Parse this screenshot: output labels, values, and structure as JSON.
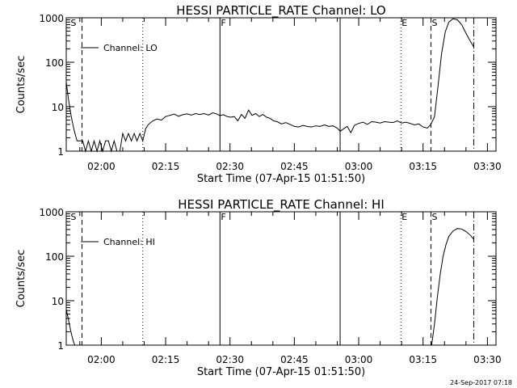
{
  "footer": {
    "timestamp": "24-Sep-2017 07:18"
  },
  "chart_data": [
    {
      "type": "line",
      "title": "HESSI PARTICLE_RATE Channel: LO",
      "xlabel": "Start Time (07-Apr-15 01:51:50)",
      "ylabel": "Counts/sec",
      "legend": {
        "label": "Channel: LO",
        "position": "top-left"
      },
      "x_unit": "UT",
      "xlim": [
        "01:51:50",
        "03:32:00"
      ],
      "ylim": [
        1,
        1000
      ],
      "y_scale": "log",
      "yticks": [
        1,
        10,
        100,
        1000
      ],
      "ytick_labels": [
        "1",
        "10",
        "100",
        "1000"
      ],
      "xticks": [
        "02:00",
        "02:15",
        "02:30",
        "02:45",
        "03:00",
        "03:15",
        "03:30"
      ],
      "markers": [
        {
          "label": "S",
          "time": "01:52:40",
          "style": "none"
        },
        {
          "label": "",
          "time": "01:55:30",
          "style": "dashed"
        },
        {
          "label": "",
          "time": "02:09:40",
          "style": "dotted"
        },
        {
          "label": "F",
          "time": "02:27:40",
          "style": "solid"
        },
        {
          "label": "",
          "time": "02:55:40",
          "style": "solid"
        },
        {
          "label": "E",
          "time": "03:09:50",
          "style": "dotted"
        },
        {
          "label": "S",
          "time": "03:16:50",
          "style": "dashed"
        },
        {
          "label": "",
          "time": "03:26:50",
          "style": "dashdot"
        }
      ],
      "series": [
        {
          "name": "Channel: LO",
          "x": [
            "01:51:50",
            "01:52:20",
            "01:53:00",
            "01:53:40",
            "01:54:20",
            "01:55:00",
            "01:55:40",
            "01:56:20",
            "01:57:00",
            "01:57:40",
            "01:58:20",
            "01:59:00",
            "01:59:40",
            "02:00:20",
            "02:01:00",
            "02:01:40",
            "02:02:20",
            "02:03:00",
            "02:03:40",
            "02:04:20",
            "02:05:00",
            "02:05:40",
            "02:06:20",
            "02:07:00",
            "02:07:40",
            "02:08:20",
            "02:09:00",
            "02:09:40",
            "02:10:20",
            "02:11:00",
            "02:12:00",
            "02:13:00",
            "02:14:00",
            "02:15:00",
            "02:16:00",
            "02:17:00",
            "02:18:00",
            "02:19:00",
            "02:20:00",
            "02:21:00",
            "02:22:00",
            "02:23:00",
            "02:24:00",
            "02:25:00",
            "02:26:00",
            "02:27:00",
            "02:27:40",
            "02:28:30",
            "02:29:20",
            "02:30:10",
            "02:31:00",
            "02:31:50",
            "02:32:40",
            "02:33:30",
            "02:34:20",
            "02:35:10",
            "02:36:00",
            "02:36:50",
            "02:37:40",
            "02:38:30",
            "02:39:20",
            "02:40:10",
            "02:41:00",
            "02:42:00",
            "02:43:00",
            "02:44:00",
            "02:45:00",
            "02:46:00",
            "02:47:00",
            "02:48:00",
            "02:49:00",
            "02:50:00",
            "02:51:00",
            "02:52:00",
            "02:53:00",
            "02:54:00",
            "02:55:00",
            "02:55:40",
            "02:56:30",
            "02:57:20",
            "02:58:10",
            "02:59:00",
            "03:00:00",
            "03:01:00",
            "03:02:00",
            "03:03:00",
            "03:04:00",
            "03:05:00",
            "03:06:00",
            "03:07:00",
            "03:08:00",
            "03:09:00",
            "03:10:00",
            "03:11:00",
            "03:12:00",
            "03:13:00",
            "03:14:00",
            "03:15:00",
            "03:16:00",
            "03:16:50",
            "03:17:40",
            "03:18:30",
            "03:19:20",
            "03:20:10",
            "03:21:00",
            "03:22:00",
            "03:23:00",
            "03:24:00",
            "03:25:00",
            "03:26:00",
            "03:26:50"
          ],
          "y": [
            36,
            15,
            6,
            3,
            1.7,
            1.7,
            1.7,
            1.0,
            1.7,
            1.0,
            1.7,
            1.0,
            1.7,
            1.0,
            1.7,
            1.7,
            1.0,
            1.7,
            1.0,
            1.0,
            2.5,
            1.7,
            2.5,
            1.7,
            2.5,
            1.7,
            2.5,
            1.7,
            3.2,
            4.0,
            4.8,
            5.3,
            5.0,
            6.0,
            6.4,
            6.8,
            6.1,
            6.6,
            6.9,
            6.5,
            7.0,
            6.7,
            7.0,
            6.5,
            7.3,
            6.8,
            6.3,
            6.6,
            6.0,
            5.8,
            6.0,
            4.8,
            6.7,
            5.5,
            8.4,
            6.4,
            7.0,
            6.0,
            6.7,
            5.8,
            5.5,
            4.8,
            4.6,
            4.1,
            4.4,
            4.0,
            3.6,
            3.5,
            3.8,
            3.6,
            3.5,
            3.7,
            3.6,
            3.9,
            3.6,
            3.7,
            3.3,
            2.8,
            3.2,
            3.6,
            2.6,
            3.8,
            4.2,
            4.5,
            4.0,
            4.6,
            4.5,
            4.3,
            4.6,
            4.5,
            4.4,
            4.8,
            4.3,
            4.5,
            4.2,
            3.9,
            4.1,
            3.5,
            3.3,
            4.0,
            6.0,
            30,
            160,
            480,
            800,
            950,
            900,
            700,
            450,
            300,
            220
          ]
        }
      ]
    },
    {
      "type": "line",
      "title": "HESSI PARTICLE_RATE Channel: HI",
      "xlabel": "Start Time (07-Apr-15 01:51:50)",
      "ylabel": "Counts/sec",
      "legend": {
        "label": "Channel: HI",
        "position": "top-left"
      },
      "x_unit": "UT",
      "xlim": [
        "01:51:50",
        "03:32:00"
      ],
      "ylim": [
        1,
        1000
      ],
      "y_scale": "log",
      "yticks": [
        1,
        10,
        100,
        1000
      ],
      "ytick_labels": [
        "1",
        "10",
        "100",
        "1000"
      ],
      "xticks": [
        "02:00",
        "02:15",
        "02:30",
        "02:45",
        "03:00",
        "03:15",
        "03:30"
      ],
      "markers": [
        {
          "label": "S",
          "time": "01:52:40",
          "style": "none"
        },
        {
          "label": "",
          "time": "01:55:30",
          "style": "dashed"
        },
        {
          "label": "",
          "time": "02:09:40",
          "style": "dotted"
        },
        {
          "label": "F",
          "time": "02:27:40",
          "style": "solid"
        },
        {
          "label": "",
          "time": "02:55:40",
          "style": "solid"
        },
        {
          "label": "E",
          "time": "03:09:50",
          "style": "dotted"
        },
        {
          "label": "S",
          "time": "03:16:50",
          "style": "dashed"
        },
        {
          "label": "",
          "time": "03:26:50",
          "style": "dashdot"
        }
      ],
      "series": [
        {
          "name": "Channel: HI",
          "x": [
            "01:51:50",
            "01:52:10",
            "01:52:30",
            "01:52:50",
            "01:53:10",
            "01:53:30",
            "01:53:50",
            "03:17:00",
            "03:17:40",
            "03:18:20",
            "03:19:00",
            "03:19:40",
            "03:20:20",
            "03:21:00",
            "03:22:00",
            "03:23:00",
            "03:24:00",
            "03:25:00",
            "03:26:00",
            "03:26:50"
          ],
          "y": [
            6.5,
            4.5,
            3.2,
            2.2,
            1.6,
            1.2,
            1.0,
            1.0,
            3.0,
            12,
            40,
            100,
            180,
            280,
            370,
            420,
            410,
            360,
            300,
            240
          ]
        }
      ]
    }
  ]
}
